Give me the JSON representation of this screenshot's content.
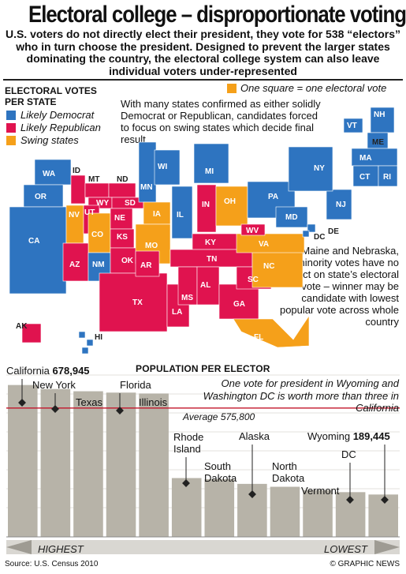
{
  "title": "Electoral college – disproportionate voting",
  "subtitle": "U.S. voters do not directly elect their president, they vote for 538 “electors” who in turn choose the president. Designed to prevent the larger states dominating the country, the electoral college system can also leave individual voters under-represented",
  "legend": {
    "title": "Electoral Votes per State",
    "items": [
      {
        "label": "Likely Democrat",
        "color": "#2e74c0"
      },
      {
        "label": "Likely Republican",
        "color": "#e0134f"
      },
      {
        "label": "Swing states",
        "color": "#f5a01a"
      }
    ],
    "one_square": "One square = one electoral vote"
  },
  "notes": {
    "map": "With many states confirmed as either solidly Democrat or Republican, candidates forced to focus on swing states which decide final result",
    "maine": "Barring Maine and Nebraska, minority votes have no impact on state’s electoral vote – winner may be candidate with lowest popular vote across whole country",
    "population": "One vote for president in Wyoming and Washington DC is worth more than three in California"
  },
  "states": [
    "WA",
    "OR",
    "CA",
    "ID",
    "MT",
    "ND",
    "WY",
    "SD",
    "NV",
    "UT",
    "CO",
    "NE",
    "KS",
    "AZ",
    "NM",
    "OK",
    "TX",
    "MN",
    "IA",
    "WI",
    "IL",
    "MO",
    "AR",
    "LA",
    "MI",
    "IN",
    "OH",
    "KY",
    "TN",
    "MS",
    "AL",
    "GA",
    "SC",
    "NC",
    "VA",
    "WV",
    "PA",
    "MD",
    "DE",
    "DC",
    "NJ",
    "NY",
    "VT",
    "NH",
    "ME",
    "MA",
    "CT",
    "RI",
    "FL",
    "AK",
    "HI"
  ],
  "chart_data": {
    "type": "bar",
    "title": "Population per Elector",
    "categories": [
      "California",
      "New York",
      "Texas",
      "Florida",
      "Illinois",
      "Rhode Island",
      "South Dakota",
      "Alaska",
      "North Dakota",
      "Vermont",
      "DC",
      "Wyoming"
    ],
    "values": [
      678945,
      661000,
      651000,
      645000,
      641000,
      263000,
      258000,
      237000,
      224000,
      209000,
      200000,
      189445
    ],
    "value_labels": {
      "California": "678,945",
      "Wyoming": "189,445"
    },
    "average": {
      "label": "Average 575,800",
      "value": 575800
    },
    "ylim": [
      0,
      720000
    ],
    "axis_left": "HIGHEST",
    "axis_right": "LOWEST",
    "bar_color": "#b7b3a8",
    "grid": true
  },
  "source": "Source: U.S. Census 2010",
  "credit": "© GRAPHIC NEWS"
}
